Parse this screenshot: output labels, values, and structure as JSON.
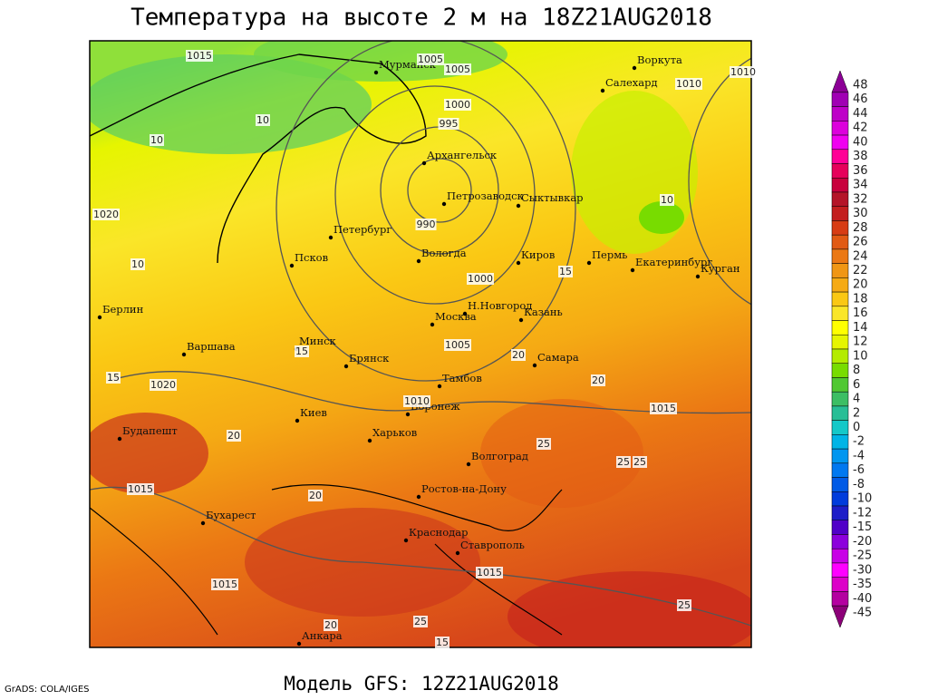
{
  "header": {
    "title": "Температура на высоте 2 м на 18Z21AUG2018"
  },
  "footer": {
    "model": "Модель GFS: 12Z21AUG2018",
    "credit": "GrADS: COLA/IGES"
  },
  "cities": [
    "Мурманск",
    "Воркута",
    "Салехард",
    "Архангельск",
    "Петрозаводск",
    "Сыктывкар",
    "Петербург",
    "Вологда",
    "Киров",
    "Пермь",
    "Екатеринбург",
    "Курган",
    "Псков",
    "Берлин",
    "Москва",
    "Н.Новгород",
    "Казань",
    "Варшава",
    "Минск",
    "Брянск",
    "Тамбов",
    "Самара",
    "Воронеж",
    "Киев",
    "Будапешт",
    "Харьков",
    "Волгоград",
    "Ростов-на-Дону",
    "Бухарест",
    "Краснодар",
    "Ставрополь",
    "Анкара"
  ],
  "contour_labels": [
    "1015",
    "1005",
    "1005",
    "1000",
    "995",
    "990",
    "1000",
    "1005",
    "1010",
    "1015",
    "1020",
    "1020",
    "1015",
    "1015",
    "1015",
    "1010",
    "1010",
    "10",
    "10",
    "10",
    "10",
    "15",
    "15",
    "15",
    "20",
    "20",
    "20",
    "20",
    "25",
    "25",
    "25",
    "25",
    "25",
    "20",
    "15"
  ],
  "colorbar": [
    {
      "label": "48",
      "color": "#8c0096"
    },
    {
      "label": "46",
      "color": "#a000b4"
    },
    {
      "label": "44",
      "color": "#be00c8"
    },
    {
      "label": "42",
      "color": "#dc00dc"
    },
    {
      "label": "40",
      "color": "#f000f0"
    },
    {
      "label": "38",
      "color": "#ff0096"
    },
    {
      "label": "36",
      "color": "#e6005a"
    },
    {
      "label": "34",
      "color": "#c8003c"
    },
    {
      "label": "32",
      "color": "#b41428"
    },
    {
      "label": "30",
      "color": "#c31e1e"
    },
    {
      "label": "28",
      "color": "#d73c14"
    },
    {
      "label": "26",
      "color": "#e15a14"
    },
    {
      "label": "24",
      "color": "#eb7814"
    },
    {
      "label": "22",
      "color": "#f09614"
    },
    {
      "label": "20",
      "color": "#f5aa14"
    },
    {
      "label": "18",
      "color": "#fac814"
    },
    {
      "label": "16",
      "color": "#fae628"
    },
    {
      "label": "14",
      "color": "#ffff00"
    },
    {
      "label": "12",
      "color": "#e6f500"
    },
    {
      "label": "10",
      "color": "#b4eb00"
    },
    {
      "label": "8",
      "color": "#78dc00"
    },
    {
      "label": "6",
      "color": "#50c832"
    },
    {
      "label": "4",
      "color": "#3cbe64"
    },
    {
      "label": "2",
      "color": "#28be96"
    },
    {
      "label": "0",
      "color": "#14c8c8"
    },
    {
      "label": "-2",
      "color": "#00b4e6"
    },
    {
      "label": "-4",
      "color": "#0096f0"
    },
    {
      "label": "-6",
      "color": "#0078f0"
    },
    {
      "label": "-8",
      "color": "#005ae6"
    },
    {
      "label": "-10",
      "color": "#003cdc"
    },
    {
      "label": "-12",
      "color": "#1e1ec8"
    },
    {
      "label": "-15",
      "color": "#5000c8"
    },
    {
      "label": "-20",
      "color": "#8c00dc"
    },
    {
      "label": "-25",
      "color": "#c800e6"
    },
    {
      "label": "-30",
      "color": "#ff00ff"
    },
    {
      "label": "-35",
      "color": "#dc00c8"
    },
    {
      "label": "-40",
      "color": "#b400a0"
    },
    {
      "label": "-45",
      "color": "#8c0078"
    }
  ]
}
